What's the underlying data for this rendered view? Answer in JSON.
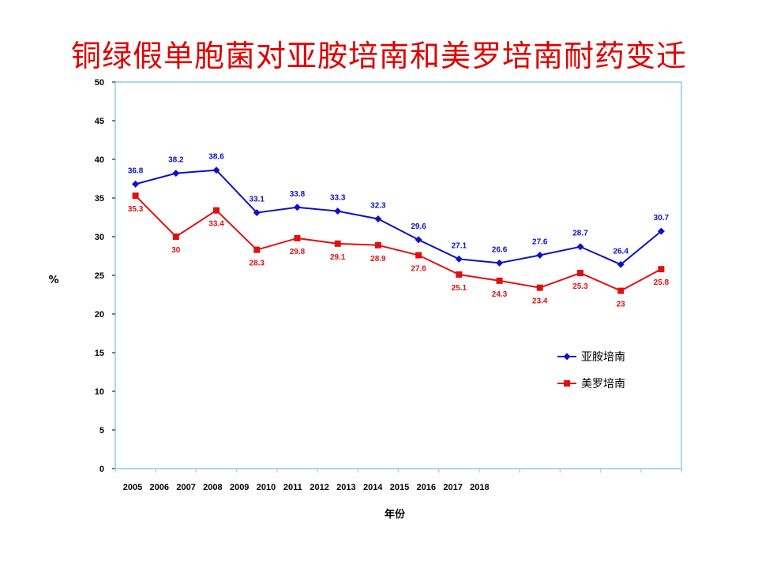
{
  "title": "铜绿假单胞菌对亚胺培南和美罗培南耐药变迁",
  "chart_data": {
    "type": "line",
    "xlabel": "年份",
    "ylabel": "%",
    "ylim": [
      0,
      50
    ],
    "yticks": [
      0,
      5,
      10,
      15,
      20,
      25,
      30,
      35,
      40,
      45,
      50
    ],
    "x_tick_labels": [
      "2005",
      "2006",
      "2007",
      "2008",
      "2009",
      "2010",
      "2011",
      "2012",
      "2013",
      "2014",
      "2015",
      "2016",
      "2017",
      "2018"
    ],
    "legend_position": "right",
    "series": [
      {
        "name": "亚胺培南",
        "color": "#1010c8",
        "marker": "diamond",
        "values": [
          36.8,
          38.2,
          38.6,
          33.1,
          33.8,
          33.3,
          32.3,
          29.6,
          27.1,
          26.6,
          27.6,
          28.7,
          26.4,
          30.7
        ],
        "labels": [
          "36.8",
          "38.2",
          "38.6",
          "33.1",
          "33.8",
          "33.3",
          "32.3",
          "29.6",
          "27.1",
          "26.6",
          "27.6",
          "28.7",
          "26.4",
          "30.7"
        ]
      },
      {
        "name": "美罗培南",
        "color": "#e01010",
        "marker": "square",
        "values": [
          35.3,
          30,
          33.4,
          28.3,
          29.8,
          29.1,
          28.9,
          27.6,
          25.1,
          24.3,
          23.4,
          25.3,
          23,
          25.8
        ],
        "labels": [
          "35.3",
          "30",
          "33.4",
          "28.3",
          "29.8",
          "29.1",
          "28.9",
          "27.6",
          "25.1",
          "24.3",
          "23.4",
          "25.3",
          "23",
          "25.8"
        ]
      }
    ]
  }
}
